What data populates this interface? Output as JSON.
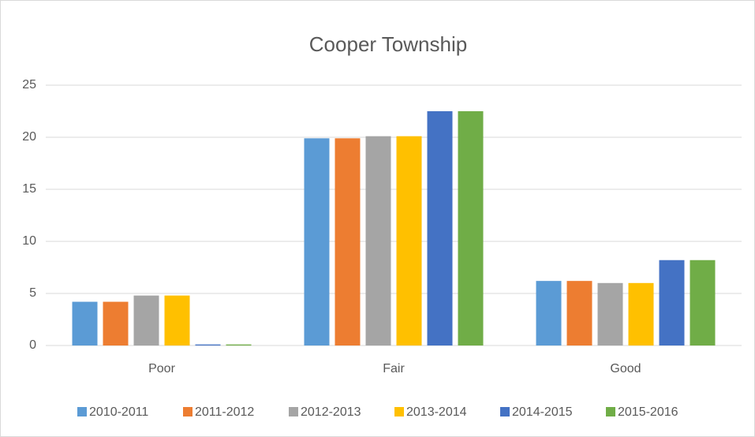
{
  "chart_data": {
    "type": "bar",
    "title": "Cooper Township",
    "categories": [
      "Poor",
      "Fair",
      "Good"
    ],
    "series": [
      {
        "name": "2010-2011",
        "color": "#5b9bd5",
        "values": [
          4.2,
          19.9,
          6.2
        ]
      },
      {
        "name": "2011-2012",
        "color": "#ed7d31",
        "values": [
          4.2,
          19.9,
          6.2
        ]
      },
      {
        "name": "2012-2013",
        "color": "#a5a5a5",
        "values": [
          4.8,
          20.1,
          6.0
        ]
      },
      {
        "name": "2013-2014",
        "color": "#ffc000",
        "values": [
          4.8,
          20.1,
          6.0
        ]
      },
      {
        "name": "2014-2015",
        "color": "#4472c4",
        "values": [
          0.1,
          22.5,
          8.2
        ]
      },
      {
        "name": "2015-2016",
        "color": "#70ad47",
        "values": [
          0.1,
          22.5,
          8.2
        ]
      }
    ],
    "ylim": [
      0,
      25
    ],
    "yticks": [
      0,
      5,
      10,
      15,
      20,
      25
    ],
    "grid": true,
    "legend": "bottom"
  }
}
